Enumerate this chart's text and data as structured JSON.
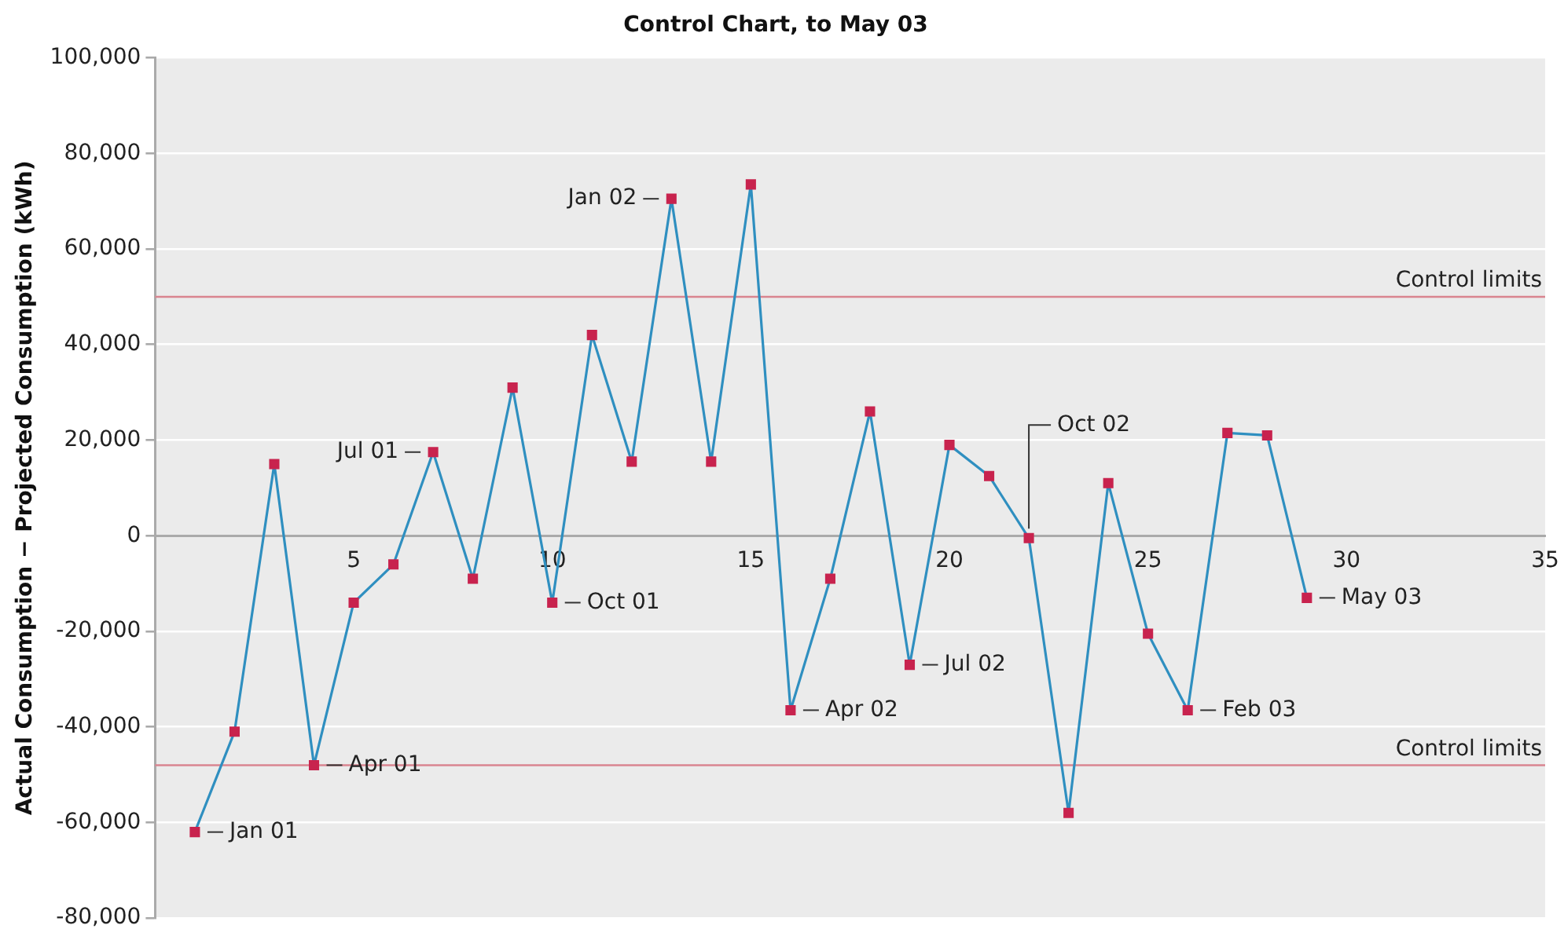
{
  "chart_data": {
    "type": "line",
    "title": "Control Chart, to May 03",
    "ylabel": "Actual Consumption − Projected Consumption (kWh)",
    "x": [
      1,
      2,
      3,
      4,
      5,
      6,
      7,
      8,
      9,
      10,
      11,
      12,
      13,
      14,
      15,
      16,
      17,
      18,
      19,
      20,
      21,
      22,
      23,
      24,
      25,
      26,
      27,
      28,
      29
    ],
    "series": [
      {
        "color": "#2f8fc0",
        "colors": [
          "#c8234e",
          "#c8234e",
          "#c8234e",
          "#c8234e",
          "#c8234e",
          "#c8234e",
          "#c8234e",
          "#c8234e",
          "#c8234e",
          "#c8234e",
          "#c8234e",
          "#c8234e",
          "#c8234e",
          "#c8234e",
          "#c8234e",
          "#c8234e",
          "#c8234e",
          "#c8234e",
          "#c8234e",
          "#c8234e",
          "#c8234e",
          "#c8234e",
          "#c8234e",
          "#c8234e",
          "#c8234e",
          "#c8234e",
          "#c8234e",
          "#c8234e",
          "#c8234e"
        ],
        "values": [
          -62000,
          -41000,
          15000,
          -48000,
          -14000,
          -6000,
          17500,
          -9000,
          31000,
          -14000,
          42000,
          15500,
          70500,
          15500,
          73500,
          -36500,
          -9000,
          26000,
          -27000,
          19000,
          12500,
          -500,
          -58000,
          11000,
          -20500,
          -36500,
          21500,
          21000,
          -13000
        ]
      }
    ],
    "xlim": [
      0,
      35
    ],
    "xticks": [
      5,
      10,
      15,
      20,
      25,
      30,
      35
    ],
    "ylim": [
      -80000,
      100000
    ],
    "yticks": [
      {
        "value": -80000,
        "label": "-80,000"
      },
      {
        "value": -60000,
        "label": "-60,000"
      },
      {
        "value": -40000,
        "label": "-40,000"
      },
      {
        "value": -20000,
        "label": "-20,000"
      },
      {
        "value": 0,
        "label": "0"
      },
      {
        "value": 20000,
        "label": "20,000"
      },
      {
        "value": 40000,
        "label": "40,000"
      },
      {
        "value": 60000,
        "label": "60,000"
      },
      {
        "value": 80000,
        "label": "80,000"
      },
      {
        "value": 100000,
        "label": "100,000"
      }
    ],
    "ref_lines": [
      {
        "axis": "y",
        "value": 50000,
        "label": "Control limits",
        "color": "#d98590"
      },
      {
        "axis": "y",
        "value": -48000,
        "label": "Control limits",
        "color": "#d98590"
      }
    ],
    "annotations": [
      {
        "text": "Jan 01",
        "x": 1,
        "y": -62000
      },
      {
        "text": "Apr 01",
        "x": 4,
        "y": -48000
      },
      {
        "text": "Jul 01",
        "x": 7,
        "y": 17500
      },
      {
        "text": "Oct 01",
        "x": 10,
        "y": -14000
      },
      {
        "text": "Jan 02",
        "x": 13,
        "y": 70500
      },
      {
        "text": "Apr 02",
        "x": 16,
        "y": -36500
      },
      {
        "text": "Jul 02",
        "x": 19,
        "y": -27000
      },
      {
        "text": "Oct 02",
        "x": 22,
        "y": -500
      },
      {
        "text": "Feb 03",
        "x": 26,
        "y": -36500
      },
      {
        "text": "May 03",
        "x": 29,
        "y": -13000
      }
    ],
    "grid": "y",
    "legend": false,
    "marker": "square",
    "line_style": "solid"
  }
}
